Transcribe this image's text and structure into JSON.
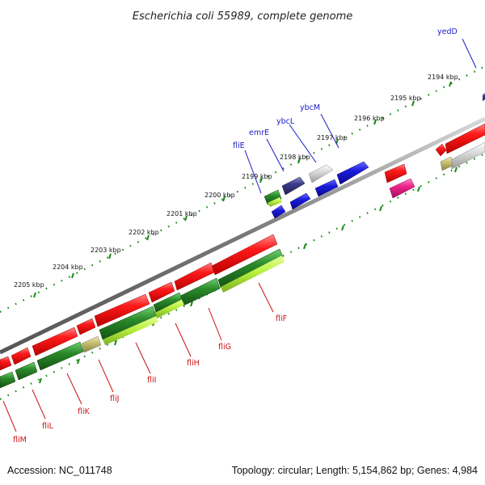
{
  "title": "Escherichia coli 55989, complete genome",
  "footer": {
    "accession": "Accession: NC_011748",
    "summary": "Topology: circular; Length: 5,154,862 bp; Genes: 4,984"
  },
  "ticks": [
    "2194 kbp",
    "2195 kbp",
    "2196 kbp",
    "2197 kbp",
    "2198 kbp",
    "2199 kbp",
    "2200 kbp",
    "2201 kbp",
    "2202 kbp",
    "2203 kbp",
    "2204 kbp",
    "2205 kbp"
  ],
  "genes_top": [
    "yedD",
    "ybcM",
    "ybcL",
    "emrE",
    "fliE"
  ],
  "genes_bottom": [
    "fliF",
    "fliG",
    "fliH",
    "fliI",
    "fliJ",
    "fliK",
    "fliL",
    "fliM"
  ],
  "colors": {
    "tick_dots": "#1a8a1a",
    "backbone": "#888888",
    "top_label": "#1a1ac8",
    "bottom_label": "#cc1111",
    "red": "#ee1111",
    "green_dark": "#2a8a2a",
    "green_light": "#b8f040",
    "blue": "#1a1add",
    "navy": "#3a3a8a",
    "grey": "#cfcfcf",
    "pink": "#ee2288",
    "khaki": "#c8c070"
  }
}
